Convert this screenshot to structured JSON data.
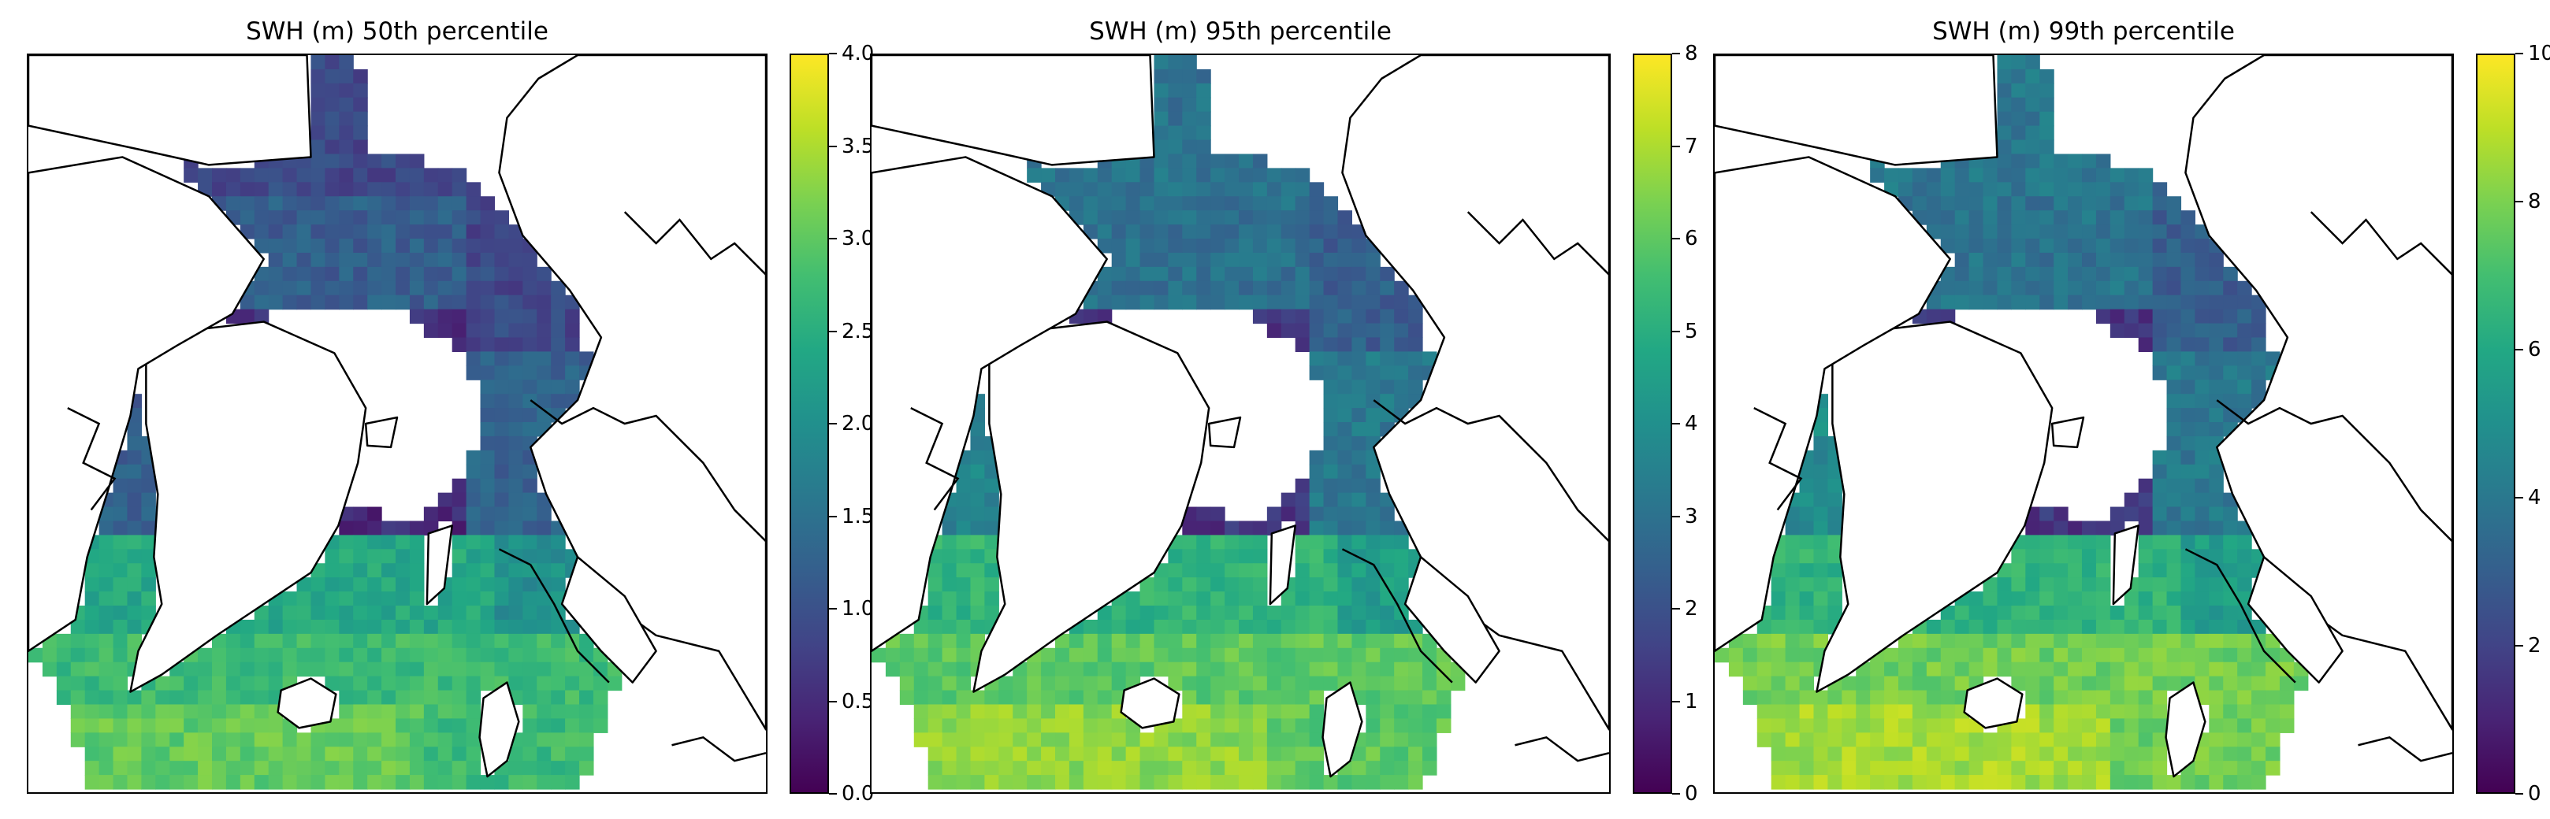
{
  "colors": {
    "colormap": [
      "#440154",
      "#482475",
      "#414487",
      "#355f8d",
      "#2a788e",
      "#21908d",
      "#22a884",
      "#42be71",
      "#7ad151",
      "#bddf26",
      "#fde725"
    ],
    "land": "#ffffff",
    "coastline": "#000000"
  },
  "colormap_name": "viridis",
  "panels": [
    {
      "title": "SWH (m) 50th percentile",
      "colorbar": {
        "min": 0,
        "max": 4,
        "ticks": [
          "0.0",
          "0.5",
          "1.0",
          "1.5",
          "2.0",
          "2.5",
          "3.0",
          "3.5",
          "4.0"
        ]
      },
      "regions": {
        "north_pacific": 0.22,
        "bering": 0.35,
        "central": 0.12,
        "siberian": 0.22,
        "barents": 0.5,
        "nordic": 0.6,
        "south_atlantic": 0.68,
        "iceland": 0.75,
        "labrador": 0.3,
        "baffin": 0.26
      }
    },
    {
      "title": "SWH (m) 95th percentile",
      "colorbar": {
        "min": 0,
        "max": 8,
        "ticks": [
          "0",
          "1",
          "2",
          "3",
          "4",
          "5",
          "6",
          "7",
          "8"
        ]
      },
      "regions": {
        "north_pacific": 0.38,
        "bering": 0.42,
        "central": 0.15,
        "siberian": 0.3,
        "barents": 0.55,
        "nordic": 0.65,
        "south_atlantic": 0.75,
        "iceland": 0.85,
        "labrador": 0.45,
        "baffin": 0.35
      }
    },
    {
      "title": "SWH (m) 99th percentile",
      "colorbar": {
        "min": 0,
        "max": 10,
        "ticks": [
          "0",
          "2",
          "4",
          "6",
          "8",
          "10"
        ]
      },
      "regions": {
        "north_pacific": 0.4,
        "bering": 0.43,
        "central": 0.16,
        "siberian": 0.3,
        "barents": 0.55,
        "nordic": 0.65,
        "south_atlantic": 0.78,
        "iceland": 0.9,
        "labrador": 0.48,
        "baffin": 0.36
      }
    }
  ]
}
